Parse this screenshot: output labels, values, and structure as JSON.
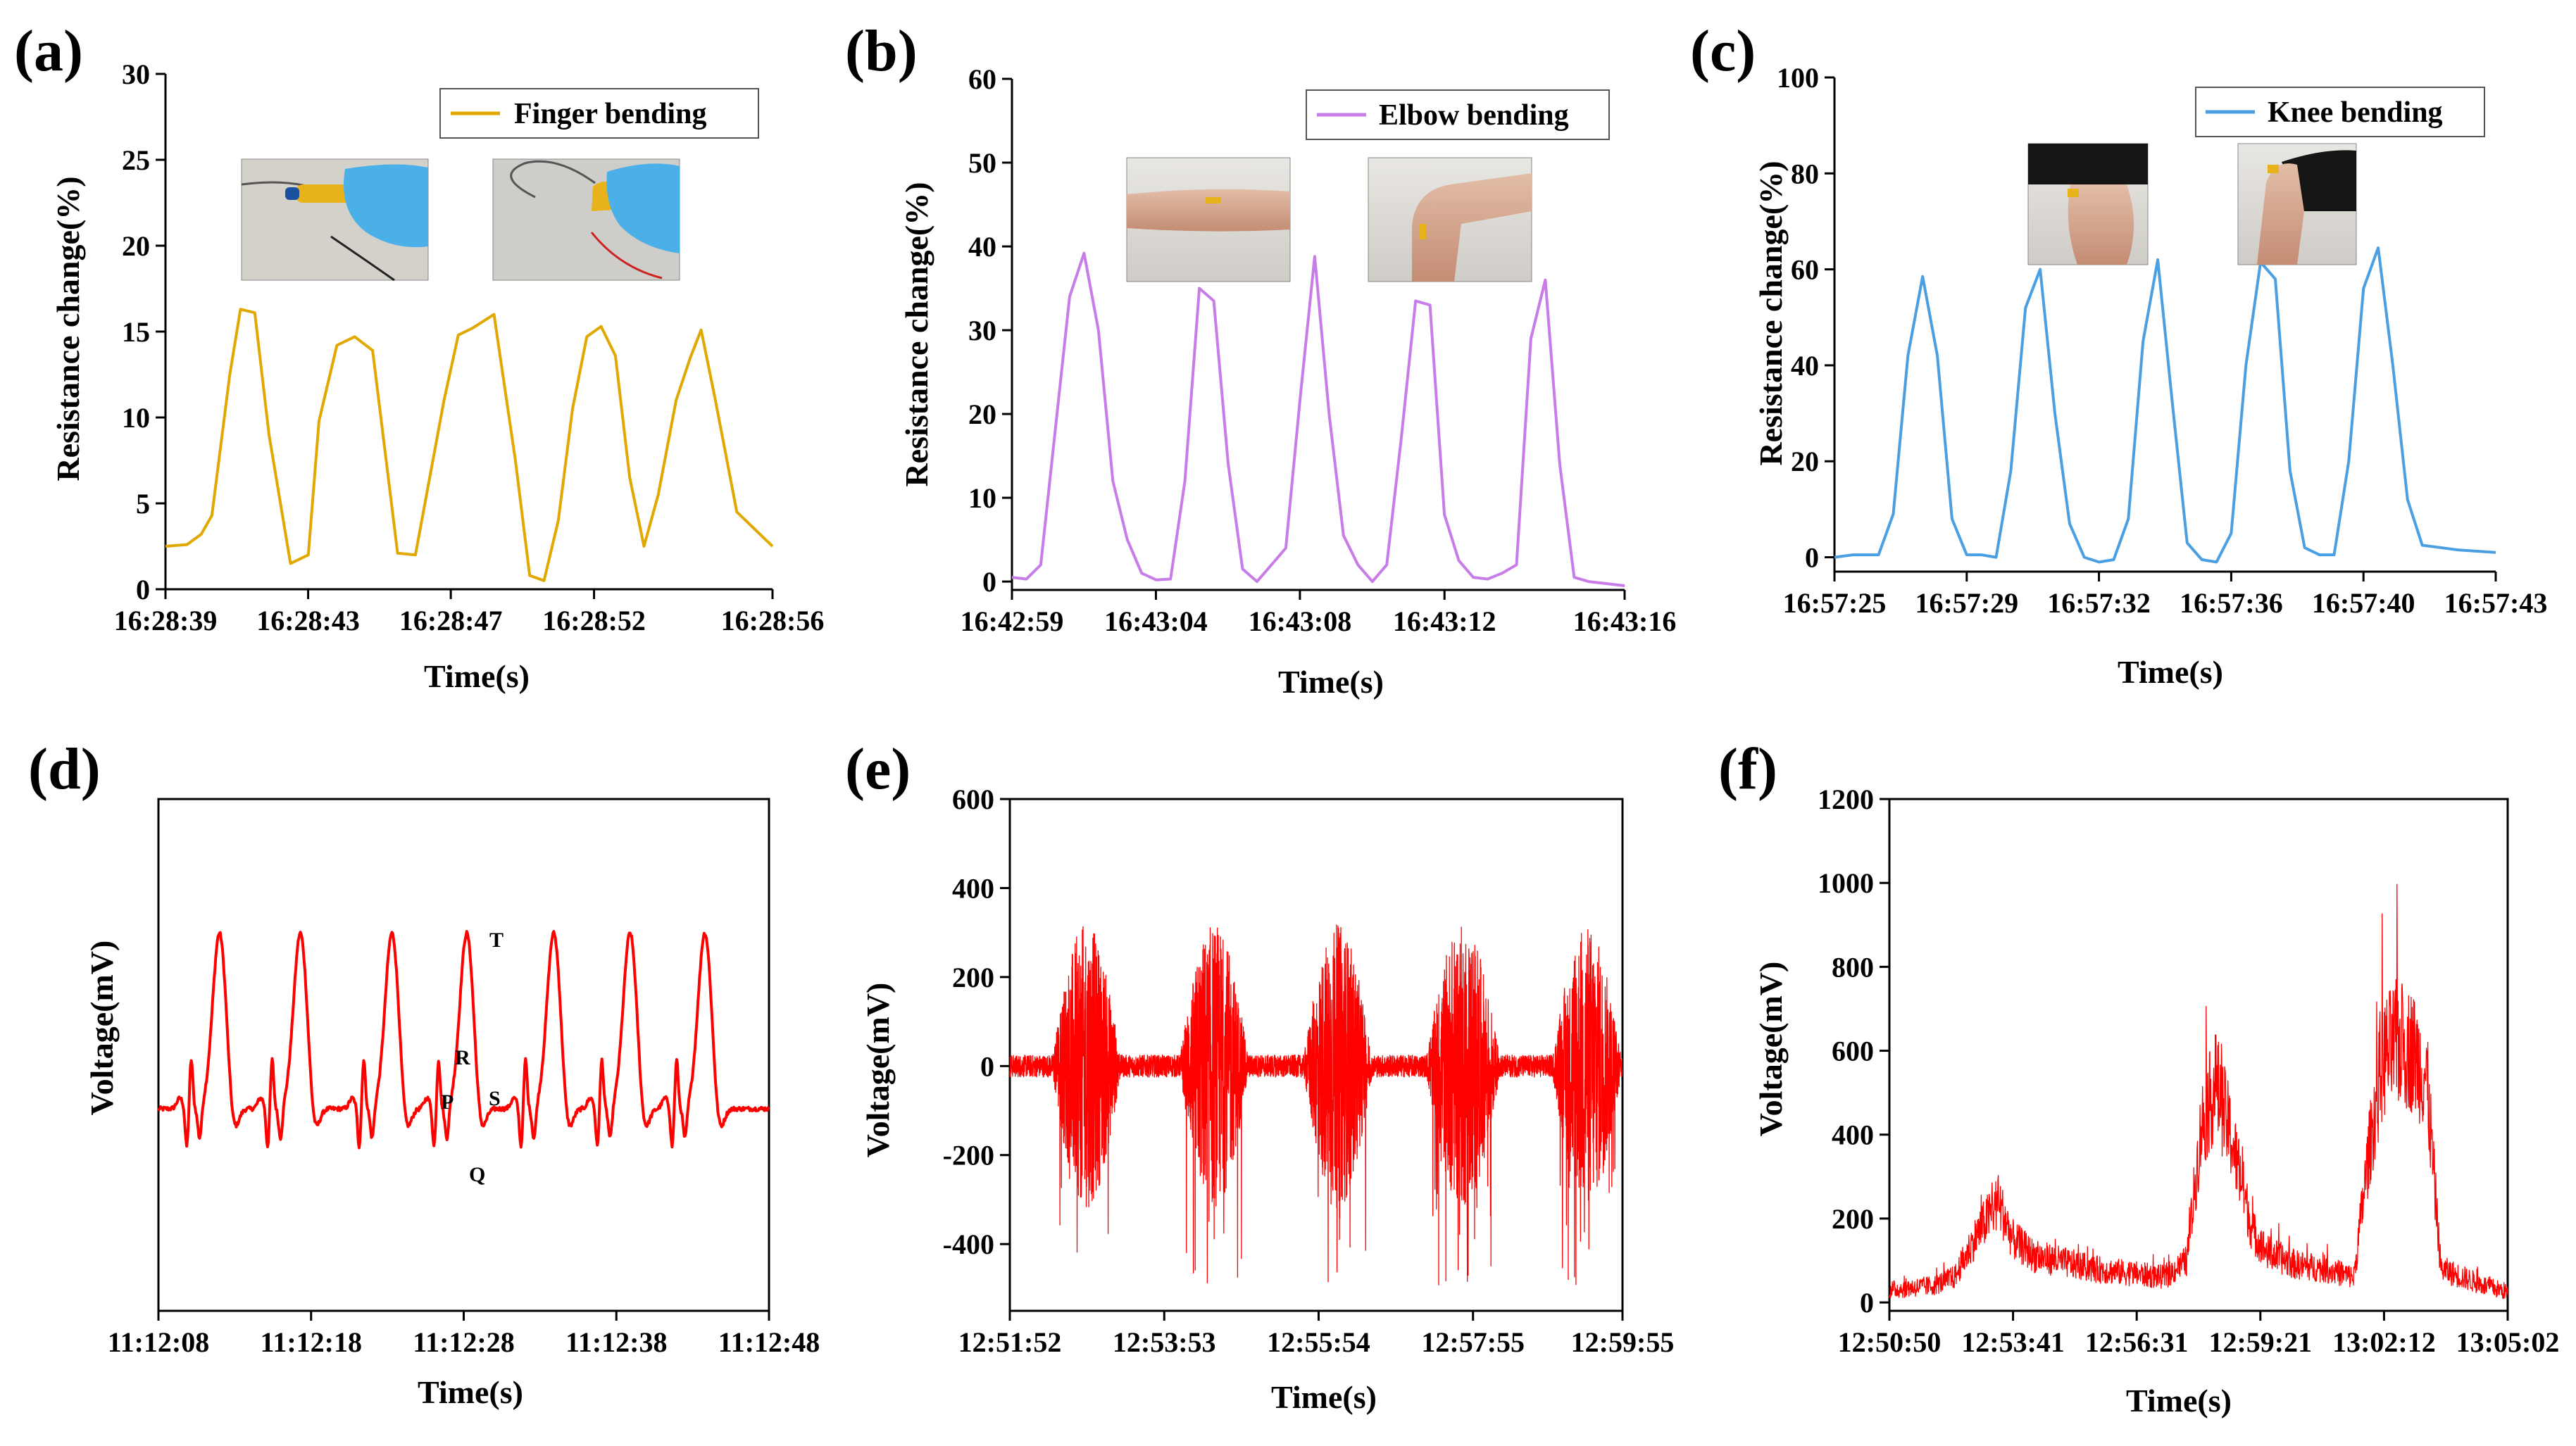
{
  "chart_data": [
    {
      "panel": "(a)",
      "type": "line",
      "xlabel": "Time(s)",
      "ylabel": "Resistance change(%)",
      "x_tick_labels": [
        "16:28:39",
        "16:28:43",
        "16:28:47",
        "16:28:52",
        "16:28:56"
      ],
      "y_ticks": [
        0,
        5,
        10,
        15,
        20,
        25,
        30
      ],
      "ylim": [
        0,
        30
      ],
      "xlim": [
        0,
        17
      ],
      "legend": "Finger bending",
      "color": "#E0A800",
      "insets": [
        "finger-straight-photo",
        "finger-bent-photo"
      ],
      "x": [
        0,
        0.6,
        1.0,
        1.3,
        1.8,
        2.1,
        2.5,
        2.9,
        3.5,
        4.0,
        4.3,
        4.8,
        5.3,
        5.8,
        6.5,
        7.0,
        7.4,
        7.8,
        8.2,
        8.6,
        9.2,
        9.8,
        10.2,
        10.6,
        11.0,
        11.4,
        11.8,
        12.2,
        12.6,
        13.0,
        13.4,
        13.8,
        14.3,
        14.7,
        15.0,
        15.4,
        16.0,
        17.0
      ],
      "y": [
        2.5,
        2.6,
        3.2,
        4.3,
        12.5,
        16.3,
        16.1,
        9.0,
        1.5,
        2.0,
        9.8,
        14.2,
        14.7,
        13.9,
        2.1,
        2.0,
        6.5,
        11.0,
        14.8,
        15.2,
        16.0,
        7.5,
        0.8,
        0.5,
        4.0,
        10.5,
        14.7,
        15.3,
        13.6,
        6.5,
        2.5,
        5.5,
        11.0,
        13.5,
        15.1,
        11.0,
        4.5,
        2.5
      ]
    },
    {
      "panel": "(b)",
      "type": "line",
      "xlabel": "Time(s)",
      "ylabel": "Resistance change(%)",
      "x_tick_labels": [
        "16:42:59",
        "16:43:04",
        "16:43:08",
        "16:43:12",
        "16:43:16"
      ],
      "y_ticks": [
        0,
        10,
        20,
        30,
        40,
        50,
        60
      ],
      "ylim": [
        -1,
        60
      ],
      "xlim": [
        0,
        17
      ],
      "legend": "Elbow bending",
      "color": "#C77CE8",
      "insets": [
        "elbow-straight-photo",
        "elbow-bent-photo"
      ],
      "x": [
        0,
        0.4,
        0.8,
        1.2,
        1.6,
        2.0,
        2.4,
        2.8,
        3.2,
        3.6,
        4.0,
        4.4,
        4.8,
        5.2,
        5.6,
        6.0,
        6.4,
        6.8,
        7.2,
        7.6,
        8.0,
        8.4,
        8.8,
        9.2,
        9.6,
        10.0,
        10.4,
        10.8,
        11.2,
        11.6,
        12.0,
        12.4,
        12.8,
        13.2,
        13.6,
        14.0,
        14.4,
        14.8,
        15.2,
        15.6,
        16.0,
        17.0
      ],
      "y": [
        0.5,
        0.3,
        2.0,
        18.0,
        34.0,
        39.2,
        30.0,
        12.0,
        5.0,
        1.0,
        0.2,
        0.3,
        12.0,
        35.0,
        33.5,
        14.0,
        1.5,
        0.0,
        2.0,
        4.0,
        22.0,
        38.8,
        20.0,
        5.5,
        2.0,
        0.0,
        2.0,
        17.0,
        33.5,
        33.0,
        8.0,
        2.5,
        0.5,
        0.3,
        1.0,
        2.0,
        29.0,
        36.0,
        14.0,
        0.5,
        0.0,
        -0.5
      ]
    },
    {
      "panel": "(c)",
      "type": "line",
      "xlabel": "Time(s)",
      "ylabel": "Resistance change(%)",
      "x_tick_labels": [
        "16:57:25",
        "16:57:29",
        "16:57:32",
        "16:57:36",
        "16:57:40",
        "16:57:43"
      ],
      "y_ticks": [
        0,
        20,
        40,
        60,
        80,
        100
      ],
      "ylim": [
        -3,
        100
      ],
      "xlim": [
        0,
        18
      ],
      "legend": "Knee bending",
      "color": "#4A9FE3",
      "insets": [
        "knee-straight-photo",
        "knee-bent-photo"
      ],
      "x": [
        0,
        0.5,
        1.2,
        1.6,
        2.0,
        2.4,
        2.8,
        3.2,
        3.6,
        4.0,
        4.4,
        4.8,
        5.2,
        5.6,
        6.0,
        6.4,
        6.8,
        7.2,
        7.6,
        8.0,
        8.4,
        8.8,
        9.2,
        9.6,
        10.0,
        10.4,
        10.8,
        11.2,
        11.6,
        12.0,
        12.4,
        12.8,
        13.2,
        13.6,
        14.0,
        14.4,
        14.8,
        15.2,
        15.6,
        16.0,
        17.0,
        18.0
      ],
      "y": [
        0,
        0.5,
        0.5,
        9.0,
        42.0,
        58.5,
        42.0,
        8.0,
        0.5,
        0.5,
        0.0,
        18.0,
        52.0,
        60.0,
        30.0,
        7.0,
        0.0,
        -1.0,
        -0.5,
        8.0,
        45.0,
        62.0,
        32.0,
        3.0,
        -0.5,
        -1.0,
        5.0,
        40.0,
        61.5,
        58.0,
        18.0,
        2.0,
        0.5,
        0.5,
        20.0,
        56.0,
        64.5,
        40.0,
        12.0,
        2.5,
        1.5,
        1.0
      ]
    },
    {
      "panel": "(d)",
      "type": "line",
      "xlabel": "Time(s)",
      "ylabel": "Voltage(mV)",
      "x_tick_labels": [
        "11:12:08",
        "11:12:18",
        "11:12:28",
        "11:12:38",
        "11:12:48"
      ],
      "xlim": [
        0,
        40
      ],
      "ylim": [
        -1,
        1
      ],
      "color": "#FF0000",
      "y_values_normalized": true,
      "peak_times": [
        4.0,
        9.3,
        15.3,
        20.2,
        25.9,
        30.9,
        35.8
      ],
      "annotations": [
        "P",
        "Q",
        "R",
        "S",
        "T"
      ]
    },
    {
      "panel": "(e)",
      "type": "line",
      "xlabel": "Time(s)",
      "ylabel": "Voltage(mV)",
      "x_tick_labels": [
        "12:51:52",
        "12:53:53",
        "12:55:54",
        "12:57:55",
        "12:59:55"
      ],
      "y_ticks": [
        -400,
        -200,
        0,
        200,
        400,
        600
      ],
      "ylim": [
        -550,
        600
      ],
      "xlim": [
        0,
        480
      ],
      "color": "#FF0000",
      "baseline_noise_mV": 25,
      "bursts": [
        {
          "center": 60,
          "half_width": 28,
          "amplitude": 320
        },
        {
          "center": 160,
          "half_width": 28,
          "amplitude": 320
        },
        {
          "center": 257,
          "half_width": 28,
          "amplitude": 320
        },
        {
          "center": 355,
          "half_width": 30,
          "amplitude": 320
        },
        {
          "center": 452,
          "half_width": 28,
          "amplitude": 320
        }
      ]
    },
    {
      "panel": "(f)",
      "type": "line",
      "xlabel": "Time(s)",
      "ylabel": "Voltage(mV)",
      "x_tick_labels": [
        "12:50:50",
        "12:53:41",
        "12:56:31",
        "12:59:21",
        "13:02:12",
        "13:05:02"
      ],
      "y_ticks": [
        0,
        200,
        400,
        600,
        800,
        1000,
        1200
      ],
      "ylim": [
        -20,
        1200
      ],
      "xlim": [
        0,
        852
      ],
      "color": "#FF0000",
      "envelope_t": [
        0,
        60,
        90,
        120,
        150,
        170,
        200,
        230,
        280,
        330,
        380,
        410,
        430,
        450,
        470,
        490,
        500,
        520,
        560,
        600,
        640,
        660,
        680,
        700,
        720,
        740,
        760,
        790,
        820,
        852
      ],
      "envelope_mV": [
        30,
        40,
        60,
        160,
        240,
        150,
        110,
        100,
        80,
        70,
        60,
        100,
        420,
        520,
        400,
        250,
        170,
        120,
        90,
        80,
        60,
        350,
        580,
        620,
        600,
        540,
        80,
        60,
        40,
        25
      ]
    }
  ]
}
